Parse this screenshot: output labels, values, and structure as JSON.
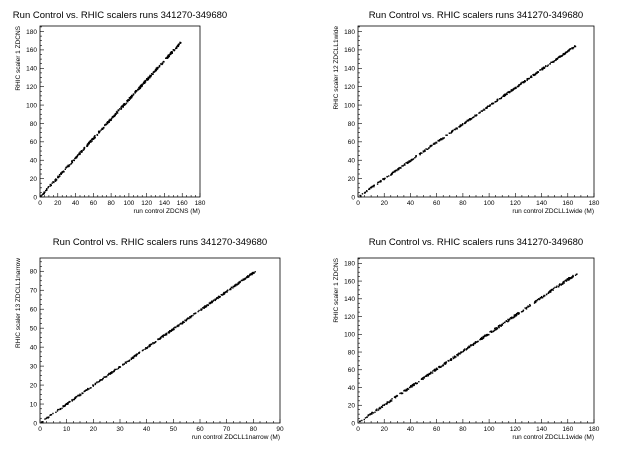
{
  "chart_data": [
    {
      "type": "scatter",
      "title": "Run Control vs. RHIC scalers runs 341270-349680",
      "xlabel": "run control ZDCNS (M)",
      "ylabel": "RHIC scaler 1 ZDCNS",
      "xlim": [
        0,
        180
      ],
      "ylim": [
        0,
        186
      ],
      "xticks": [
        0,
        20,
        40,
        60,
        80,
        100,
        120,
        140,
        160,
        180
      ],
      "yticks": [
        0,
        20,
        40,
        60,
        80,
        100,
        120,
        140,
        160,
        180
      ],
      "xmax_data": 159,
      "slope": 1.06,
      "noise": 1.3,
      "grid": false
    },
    {
      "type": "scatter",
      "title": "Run Control vs. RHIC scalers runs 341270-349680",
      "xlabel": "run control ZDCLL1wide (M)",
      "ylabel": "RHIC scaler 12 ZDCLL1wide",
      "xlim": [
        0,
        180
      ],
      "ylim": [
        0,
        186
      ],
      "xticks": [
        0,
        20,
        40,
        60,
        80,
        100,
        120,
        140,
        160,
        180
      ],
      "yticks": [
        0,
        20,
        40,
        60,
        80,
        100,
        120,
        140,
        160,
        180
      ],
      "xmax_data": 166,
      "slope": 0.99,
      "noise": 0.9,
      "grid": false
    },
    {
      "type": "scatter",
      "title": "Run Control vs. RHIC scalers runs 341270-349680",
      "xlabel": "run control ZDCLL1narrow (M)",
      "ylabel": "RHIC scaler 13 ZDCLL1narrow",
      "xlim": [
        0,
        90
      ],
      "ylim": [
        0,
        87
      ],
      "xticks": [
        0,
        10,
        20,
        30,
        40,
        50,
        60,
        70,
        80,
        90
      ],
      "yticks": [
        0,
        10,
        20,
        30,
        40,
        50,
        60,
        70,
        80
      ],
      "xmax_data": 81,
      "slope": 0.99,
      "noise": 0.45,
      "grid": false
    },
    {
      "type": "scatter",
      "title": "Run Control vs. RHIC scalers runs 341270-349680",
      "xlabel": "run control ZDCLL1wide (M)",
      "ylabel": "RHIC scaler 1 ZDCNS",
      "xlim": [
        0,
        180
      ],
      "ylim": [
        0,
        186
      ],
      "xticks": [
        0,
        20,
        40,
        60,
        80,
        100,
        120,
        140,
        160,
        180
      ],
      "yticks": [
        0,
        20,
        40,
        60,
        80,
        100,
        120,
        140,
        160,
        180
      ],
      "xmax_data": 167,
      "slope": 1.01,
      "noise": 1.2,
      "grid": false
    }
  ]
}
